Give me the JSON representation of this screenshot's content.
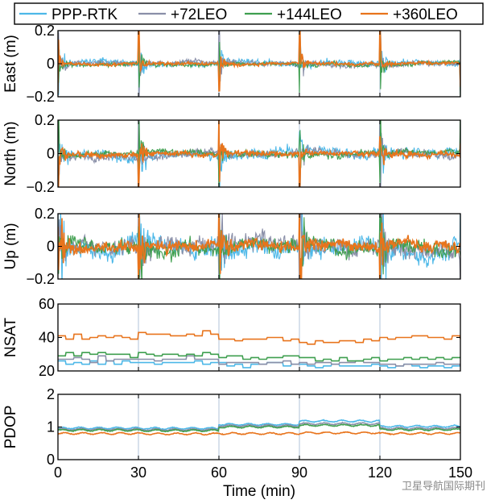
{
  "watermark": "卫星导航国际期刊",
  "legend": [
    "PPP-RTK",
    "+72LEO",
    "+144LEO",
    "+360LEO"
  ],
  "colors": {
    "PPP-RTK": "#4db8e8",
    "+72LEO": "#8a8fa8",
    "+144LEO": "#3f9f4f",
    "+360LEO": "#e8741c"
  },
  "chart_data": [
    {
      "type": "line",
      "ylabel": "East (m)",
      "ylim": [
        -0.2,
        0.2
      ],
      "yticks": [
        "0.2",
        "0",
        "−0.2"
      ],
      "xlim": [
        0,
        150
      ],
      "reinit_minutes": [
        0,
        30,
        60,
        90,
        120
      ],
      "series": [
        {
          "name": "PPP-RTK",
          "noise_level": 0.012
        },
        {
          "name": "+72LEO",
          "noise_level": 0.01
        },
        {
          "name": "+144LEO",
          "noise_level": 0.008
        },
        {
          "name": "+360LEO",
          "noise_level": 0.006
        }
      ]
    },
    {
      "type": "line",
      "ylabel": "North (m)",
      "ylim": [
        -0.2,
        0.2
      ],
      "yticks": [
        "0.2",
        "0",
        "−0.2"
      ],
      "xlim": [
        0,
        150
      ],
      "reinit_minutes": [
        0,
        30,
        60,
        90,
        120
      ],
      "series": [
        {
          "name": "PPP-RTK",
          "noise_level": 0.02
        },
        {
          "name": "+72LEO",
          "noise_level": 0.015
        },
        {
          "name": "+144LEO",
          "noise_level": 0.012
        },
        {
          "name": "+360LEO",
          "noise_level": 0.01
        }
      ]
    },
    {
      "type": "line",
      "ylabel": "Up (m)",
      "ylim": [
        -0.2,
        0.2
      ],
      "yticks": [
        "0.2",
        "0",
        "−0.2"
      ],
      "xlim": [
        0,
        150
      ],
      "reinit_minutes": [
        0,
        30,
        60,
        90,
        120
      ],
      "series": [
        {
          "name": "PPP-RTK",
          "noise_level": 0.04
        },
        {
          "name": "+72LEO",
          "noise_level": 0.035
        },
        {
          "name": "+144LEO",
          "noise_level": 0.03
        },
        {
          "name": "+360LEO",
          "noise_level": 0.025
        }
      ]
    },
    {
      "type": "line",
      "ylabel": "NSAT",
      "ylim": [
        20,
        60
      ],
      "yticks": [
        "60",
        "40",
        "20"
      ],
      "xlim": [
        0,
        150
      ],
      "series": [
        {
          "name": "PPP-RTK",
          "levels": [
            25,
            25,
            24,
            23,
            23
          ]
        },
        {
          "name": "+72LEO",
          "levels": [
            27,
            27,
            25,
            25,
            24
          ]
        },
        {
          "name": "+144LEO",
          "levels": [
            30,
            30,
            28,
            27,
            27
          ]
        },
        {
          "name": "+360LEO",
          "levels": [
            40,
            42,
            39,
            38,
            40
          ]
        }
      ]
    },
    {
      "type": "line",
      "ylabel": "PDOP",
      "ylim": [
        0,
        2
      ],
      "yticks": [
        "2",
        "1",
        "0"
      ],
      "xlim": [
        0,
        150
      ],
      "xticks": [
        "0",
        "30",
        "60",
        "90",
        "120",
        "150"
      ],
      "xlabel": "Time (min)",
      "series": [
        {
          "name": "PPP-RTK",
          "levels": [
            0.97,
            0.96,
            1.08,
            1.18,
            1.02
          ]
        },
        {
          "name": "+72LEO",
          "levels": [
            0.93,
            0.92,
            1.04,
            1.1,
            0.96
          ]
        },
        {
          "name": "+144LEO",
          "levels": [
            0.9,
            0.89,
            1.0,
            1.05,
            0.92
          ]
        },
        {
          "name": "+360LEO",
          "levels": [
            0.8,
            0.79,
            0.8,
            0.82,
            0.8
          ]
        }
      ]
    }
  ]
}
